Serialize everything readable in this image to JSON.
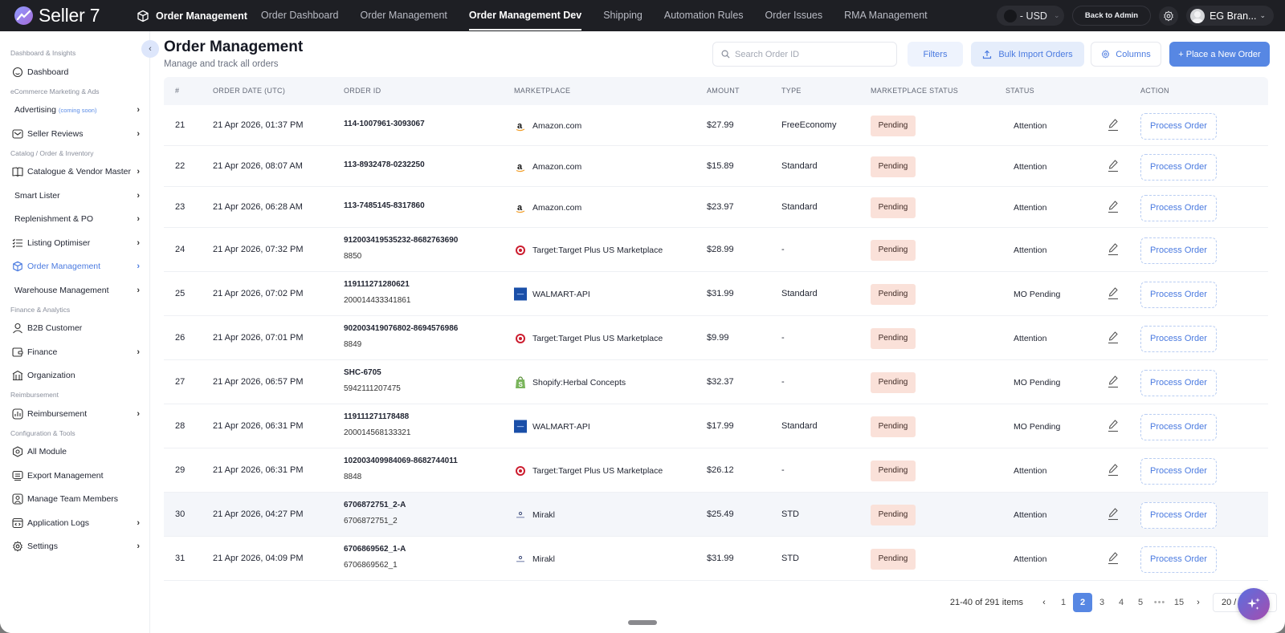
{
  "app": {
    "brand": "Seller 7"
  },
  "topnav": {
    "module": "Order Management",
    "items": [
      {
        "label": "Order Dashboard",
        "active": false
      },
      {
        "label": "Order Management",
        "active": false
      },
      {
        "label": "Order Management Dev",
        "active": true
      },
      {
        "label": "Shipping",
        "active": false
      },
      {
        "label": "Automation Rules",
        "active": false
      },
      {
        "label": "Order Issues",
        "active": false
      },
      {
        "label": "RMA Management",
        "active": false
      }
    ],
    "currency": "- USD",
    "back_to_admin": "Back to Admin",
    "user": "EG Bran..."
  },
  "sidebar": {
    "sections": [
      {
        "title": "Dashboard & Insights",
        "items": [
          {
            "label": "Dashboard",
            "icon": "dashboard-icon",
            "chevron": false
          }
        ]
      },
      {
        "title": "eCommerce Marketing & Ads",
        "items": [
          {
            "label": "Advertising",
            "badge": "(coming soon)",
            "icon": null,
            "chevron": true
          },
          {
            "label": "Seller Reviews",
            "icon": "reviews-icon",
            "chevron": true
          }
        ]
      },
      {
        "title": "Catalog / Order & Inventory",
        "items": [
          {
            "label": "Catalogue & Vendor Master",
            "icon": "book-icon",
            "chevron": true
          },
          {
            "label": "Smart Lister",
            "icon": null,
            "chevron": true
          },
          {
            "label": "Replenishment & PO",
            "icon": null,
            "chevron": true
          },
          {
            "label": "Listing Optimiser",
            "icon": "list-icon",
            "chevron": true
          },
          {
            "label": "Order Management",
            "icon": "box-icon",
            "chevron": true,
            "active": true
          },
          {
            "label": "Warehouse Management",
            "icon": null,
            "chevron": true
          }
        ]
      },
      {
        "title": "Finance & Analytics",
        "items": [
          {
            "label": "B2B Customer",
            "icon": "user-icon",
            "chevron": false
          },
          {
            "label": "Finance",
            "icon": "wallet-icon",
            "chevron": true
          },
          {
            "label": "Organization",
            "icon": "building-icon",
            "chevron": false
          }
        ]
      },
      {
        "title": "Reimbursement",
        "items": [
          {
            "label": "Reimbursement",
            "icon": "chart-icon",
            "chevron": true
          }
        ]
      },
      {
        "title": "Configuration & Tools",
        "items": [
          {
            "label": "All Module",
            "icon": "module-icon",
            "chevron": false
          },
          {
            "label": "Export Management",
            "icon": "export-icon",
            "chevron": false
          },
          {
            "label": "Manage Team Members",
            "icon": "team-icon",
            "chevron": false
          },
          {
            "label": "Application Logs",
            "icon": "logs-icon",
            "chevron": true
          },
          {
            "label": "Settings",
            "icon": "settings-icon",
            "chevron": true
          }
        ]
      }
    ]
  },
  "page": {
    "title": "Order Management",
    "subtitle": "Manage and track all orders",
    "search_placeholder": "Search Order ID",
    "filters": "Filters",
    "bulk_import": "Bulk Import Orders",
    "columns": "Columns",
    "new_order": "+ Place a New Order"
  },
  "table": {
    "headers": {
      "num": "#",
      "date": "ORDER DATE (UTC)",
      "id": "ORDER ID",
      "marketplace": "MARKETPLACE",
      "amount": "AMOUNT",
      "type": "TYPE",
      "mp_status": "MARKETPLACE STATUS",
      "status": "STATUS",
      "action": "ACTION"
    },
    "action_label": "Process Order",
    "rows": [
      {
        "num": "21",
        "date": "21 Apr 2026, 01:37 PM",
        "id": "114-1007961-3093067",
        "id2": "",
        "marketplace": "Amazon.com",
        "mp": "amazon",
        "amount": "$27.99",
        "type": "FreeEconomy",
        "mp_status": "Pending",
        "status": "Attention"
      },
      {
        "num": "22",
        "date": "21 Apr 2026, 08:07 AM",
        "id": "113-8932478-0232250",
        "id2": "",
        "marketplace": "Amazon.com",
        "mp": "amazon",
        "amount": "$15.89",
        "type": "Standard",
        "mp_status": "Pending",
        "status": "Attention"
      },
      {
        "num": "23",
        "date": "21 Apr 2026, 06:28 AM",
        "id": "113-7485145-8317860",
        "id2": "",
        "marketplace": "Amazon.com",
        "mp": "amazon",
        "amount": "$23.97",
        "type": "Standard",
        "mp_status": "Pending",
        "status": "Attention"
      },
      {
        "num": "24",
        "date": "21 Apr 2026, 07:32 PM",
        "id": "912003419535232-8682763690",
        "id2": "8850",
        "marketplace": "Target:Target Plus US Marketplace",
        "mp": "target",
        "amount": "$28.99",
        "type": "-",
        "mp_status": "Pending",
        "status": "Attention"
      },
      {
        "num": "25",
        "date": "21 Apr 2026, 07:02 PM",
        "id": "119111271280621",
        "id2": "200014433341861",
        "marketplace": "WALMART-API",
        "mp": "walmart",
        "amount": "$31.99",
        "type": "Standard",
        "mp_status": "Pending",
        "status": "MO Pending"
      },
      {
        "num": "26",
        "date": "21 Apr 2026, 07:01 PM",
        "id": "902003419076802-8694576986",
        "id2": "8849",
        "marketplace": "Target:Target Plus US Marketplace",
        "mp": "target",
        "amount": "$9.99",
        "type": "-",
        "mp_status": "Pending",
        "status": "Attention"
      },
      {
        "num": "27",
        "date": "21 Apr 2026, 06:57 PM",
        "id": "SHC-6705",
        "id2": "5942111207475",
        "marketplace": "Shopify:Herbal Concepts",
        "mp": "shopify",
        "amount": "$32.37",
        "type": "-",
        "mp_status": "Pending",
        "status": "MO Pending"
      },
      {
        "num": "28",
        "date": "21 Apr 2026, 06:31 PM",
        "id": "119111271178488",
        "id2": "200014568133321",
        "marketplace": "WALMART-API",
        "mp": "walmart",
        "amount": "$17.99",
        "type": "Standard",
        "mp_status": "Pending",
        "status": "MO Pending"
      },
      {
        "num": "29",
        "date": "21 Apr 2026, 06:31 PM",
        "id": "102003409984069-8682744011",
        "id2": "8848",
        "marketplace": "Target:Target Plus US Marketplace",
        "mp": "target",
        "amount": "$26.12",
        "type": "-",
        "mp_status": "Pending",
        "status": "Attention"
      },
      {
        "num": "30",
        "date": "21 Apr 2026, 04:27 PM",
        "id": "6706872751_2-A",
        "id2": "6706872751_2",
        "marketplace": "Mirakl",
        "mp": "mirakl",
        "amount": "$25.49",
        "type": "STD",
        "mp_status": "Pending",
        "status": "Attention",
        "hover": true
      },
      {
        "num": "31",
        "date": "21 Apr 2026, 04:09 PM",
        "id": "6706869562_1-A",
        "id2": "6706869562_1",
        "marketplace": "Mirakl",
        "mp": "mirakl",
        "amount": "$31.99",
        "type": "STD",
        "mp_status": "Pending",
        "status": "Attention"
      }
    ]
  },
  "pagination": {
    "summary": "21-40 of 291 items",
    "pages": [
      "1",
      "2",
      "3",
      "4",
      "5",
      "•••",
      "15"
    ],
    "current": "2",
    "page_size": "20 / page"
  },
  "colors": {
    "accent": "#5787e3",
    "topbar": "#1e1f24",
    "pending_badge": "#fae1d9"
  }
}
